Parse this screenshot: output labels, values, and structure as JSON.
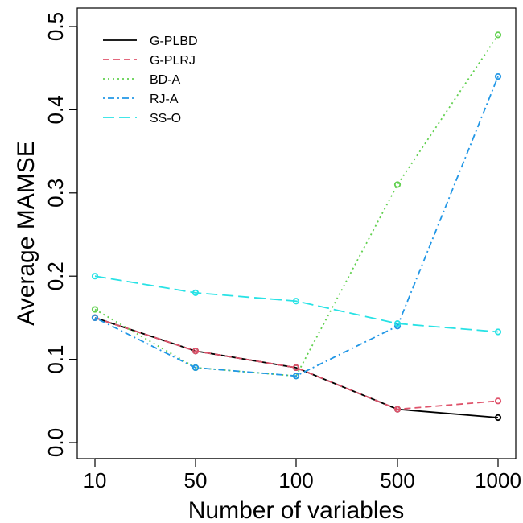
{
  "chart_data": {
    "type": "line",
    "categories": [
      "10",
      "50",
      "100",
      "500",
      "1000"
    ],
    "xlabel": "Number of variables",
    "ylabel": "Average MAMSE",
    "ylim": [
      0,
      0.5
    ],
    "yticks": [
      "0.0",
      "0.1",
      "0.2",
      "0.3",
      "0.4",
      "0.5"
    ],
    "yticks_values": [
      0,
      0.1,
      0.2,
      0.3,
      0.4,
      0.5
    ],
    "legend_position": "top-left",
    "series": [
      {
        "name": "G-PLBD",
        "color": "#000000",
        "dash": "solid",
        "values": [
          0.15,
          0.11,
          0.09,
          0.04,
          0.03
        ]
      },
      {
        "name": "G-PLRJ",
        "color": "#DF536B",
        "dash": "dashed",
        "values": [
          0.15,
          0.11,
          0.09,
          0.04,
          0.05
        ]
      },
      {
        "name": "BD-A",
        "color": "#61D04F",
        "dash": "dotted",
        "values": [
          0.16,
          0.09,
          0.08,
          0.31,
          0.49
        ]
      },
      {
        "name": "RJ-A",
        "color": "#2297E6",
        "dash": "dotdash",
        "values": [
          0.15,
          0.09,
          0.08,
          0.14,
          0.44
        ]
      },
      {
        "name": "SS-O",
        "color": "#28E2E5",
        "dash": "longdash",
        "values": [
          0.2,
          0.18,
          0.17,
          0.143,
          0.133
        ]
      }
    ]
  }
}
